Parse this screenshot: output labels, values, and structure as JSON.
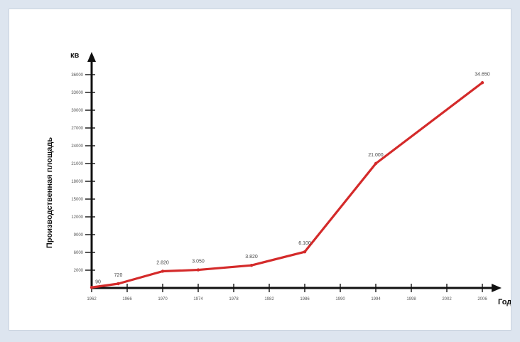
{
  "chart_data": {
    "type": "line",
    "title": "",
    "xlabel": "Год",
    "ylabel": "Производственная площадь",
    "yunit": "кв",
    "x_ticks": [
      "1962",
      "1966",
      "1970",
      "1974",
      "1978",
      "1982",
      "1986",
      "1990",
      "1994",
      "1998",
      "2002",
      "2006"
    ],
    "y_ticks": [
      "2000",
      "6000",
      "9000",
      "12000",
      "15000",
      "18000",
      "21000",
      "24000",
      "27000",
      "30000",
      "33000",
      "36000"
    ],
    "ylim": [
      0,
      36000
    ],
    "series": [
      {
        "color": "#d42a2a",
        "x": [
          1962,
          1965,
          1970,
          1974,
          1980,
          1986,
          1994,
          2006
        ],
        "values": [
          90,
          720,
          2820,
          3050,
          3820,
          6100,
          21000,
          34650
        ],
        "labels": [
          "90",
          "720",
          "2.820",
          "3.050",
          "3.820",
          "6.100",
          "21.000",
          "34.650"
        ]
      }
    ],
    "grid": false,
    "legend": "none"
  }
}
